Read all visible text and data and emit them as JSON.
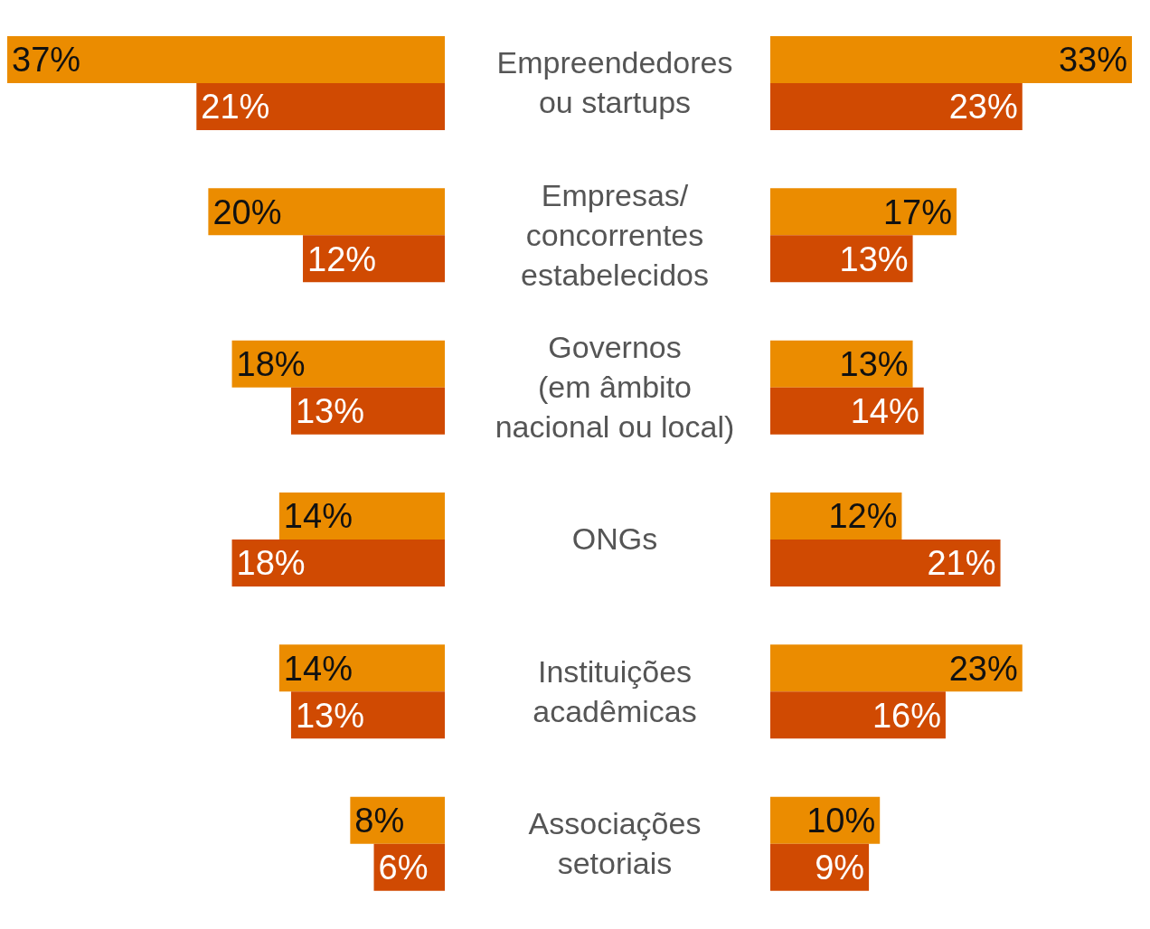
{
  "chart_data": [
    {
      "type": "bar",
      "orientation": "horizontal",
      "categories": [
        "Empreendedores\nou startups",
        "Empresas/\nconcorrentes\nestabelecidos",
        "Governos\n(em âmbito\nnacional ou local)",
        "ONGs",
        "Instituições\nacadêmicas",
        "Associações\nsetoriais"
      ],
      "series": [
        {
          "color": "#eb8c00",
          "values": [
            37,
            20,
            18,
            14,
            14,
            8
          ],
          "value_labels": [
            "37%",
            "20%",
            "18%",
            "14%",
            "14%",
            "8%"
          ]
        },
        {
          "color": "#d04a02",
          "values": [
            21,
            12,
            13,
            18,
            13,
            6
          ],
          "value_labels": [
            "21%",
            "12%",
            "13%",
            "18%",
            "13%",
            "6%"
          ]
        }
      ]
    },
    {
      "type": "bar",
      "orientation": "horizontal",
      "series": [
        {
          "color": "#eb8c00",
          "values": [
            33,
            17,
            13,
            12,
            23,
            10
          ],
          "value_labels": [
            "33%",
            "17%",
            "13%",
            "12%",
            "23%",
            "10%"
          ]
        },
        {
          "color": "#d04a02",
          "values": [
            23,
            13,
            14,
            21,
            16,
            9
          ],
          "value_labels": [
            "23%",
            "13%",
            "14%",
            "21%",
            "16%",
            "9%"
          ]
        }
      ]
    }
  ]
}
